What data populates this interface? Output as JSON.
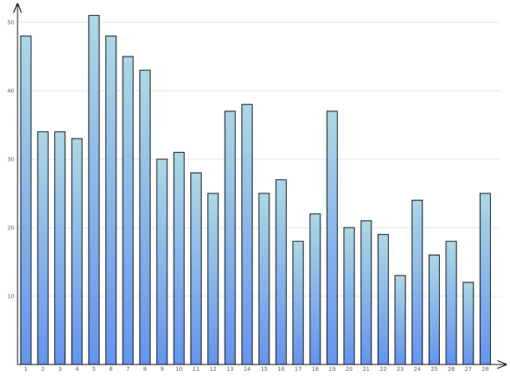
{
  "chart_data": {
    "type": "bar",
    "categories": [
      "1",
      "2",
      "3",
      "4",
      "5",
      "6",
      "7",
      "8",
      "9",
      "10",
      "11",
      "12",
      "13",
      "14",
      "15",
      "16",
      "17",
      "18",
      "19",
      "20",
      "21",
      "22",
      "23",
      "24",
      "25",
      "26",
      "27",
      "28"
    ],
    "values": [
      48,
      34,
      34,
      33,
      51,
      48,
      45,
      43,
      30,
      31,
      28,
      25,
      37,
      38,
      25,
      27,
      18,
      22,
      37,
      20,
      21,
      19,
      13,
      24,
      16,
      18,
      12,
      25
    ],
    "title": "",
    "xlabel": "",
    "ylabel": "",
    "ylim": [
      0,
      53
    ],
    "yticks": [
      10,
      20,
      30,
      40,
      50
    ],
    "ytick_labels": [
      "10",
      "20",
      "30",
      "40",
      "50"
    ],
    "grid": "horizontal",
    "colors": {
      "bar_top": "#add8e6",
      "bar_bottom": "#6495ed",
      "bar_stroke": "#000000",
      "grid": "#e6e6e6",
      "axis": "#000000"
    }
  }
}
